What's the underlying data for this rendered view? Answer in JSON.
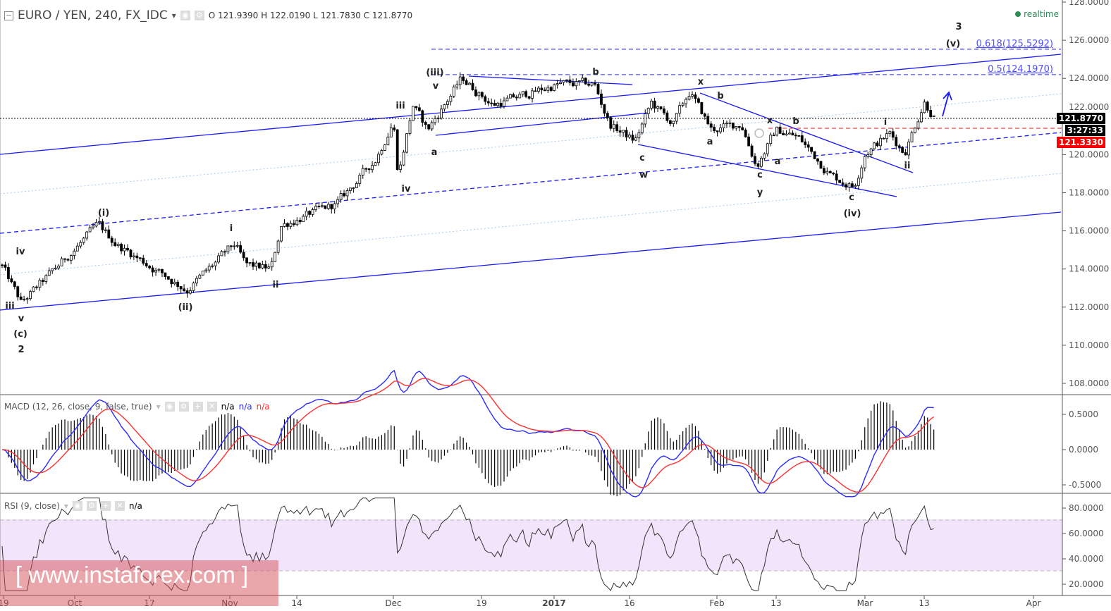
{
  "header": {
    "symbol_title": "EURO / YEN, 240, FX_IDC",
    "open_label": "O",
    "open": "121.9390",
    "high_label": "H",
    "high": "122.0190",
    "low_label": "L",
    "low": "121.7830",
    "close_label": "C",
    "close": "121.8770",
    "realtime": "realtime"
  },
  "macd": {
    "title": "MACD (12, 26, close, 9, false, true)",
    "v1": "n/a",
    "v2": "n/a",
    "v3": "n/a",
    "colors": {
      "macd": "#2b2bff",
      "signal": "#ff3030",
      "histogram": "#000000"
    }
  },
  "rsi": {
    "title": "RSI (9, close)",
    "v1": "n/a",
    "band_color": "#f1e4fb"
  },
  "price_tags": {
    "last": "121.8770",
    "countdown": "3:27:33",
    "level": "121.3330"
  },
  "watermark": "[ www.instaforex.com ]",
  "chart_data": {
    "type": "candlestick",
    "price_axis": {
      "range": [
        107,
        128
      ],
      "ticks": [
        "128.0000",
        "126.0000",
        "124.0000",
        "122.0000",
        "120.0000",
        "118.0000",
        "116.0000",
        "114.0000",
        "112.0000",
        "110.0000",
        "108.0000"
      ]
    },
    "macd_axis": {
      "ticks": [
        "0.5000",
        "0.0000",
        "-0.5000"
      ]
    },
    "rsi_axis": {
      "ticks": [
        "80.0000",
        "60.0000",
        "40.0000",
        "20.0000"
      ],
      "band": [
        30,
        70
      ]
    },
    "x_ticks": [
      "19",
      "Oct",
      "17",
      "Nov",
      "14",
      "Dec",
      "19",
      "2017",
      "16",
      "Feb",
      "13",
      "Mar",
      "13",
      "Apr"
    ],
    "price_path": [
      [
        "2016-09-19",
        114.0
      ],
      [
        "2016-09-22",
        112.2
      ],
      [
        "2016-10-06",
        116.3
      ],
      [
        "2016-10-10",
        115.3
      ],
      [
        "2016-10-24",
        112.9
      ],
      [
        "2016-11-02",
        115.3
      ],
      [
        "2016-11-04",
        114.2
      ],
      [
        "2016-11-09",
        114.0
      ],
      [
        "2016-11-11",
        116.3
      ],
      [
        "2016-11-21",
        117.4
      ],
      [
        "2016-11-28",
        119.8
      ],
      [
        "2016-12-01",
        121.8
      ],
      [
        "2016-12-02",
        118.9
      ],
      [
        "2016-12-05",
        122.6
      ],
      [
        "2016-12-08",
        121.3
      ],
      [
        "2016-12-15",
        124.0
      ],
      [
        "2016-12-21",
        122.6
      ],
      [
        "2017-01-02",
        123.7
      ],
      [
        "2017-01-09",
        123.7
      ],
      [
        "2017-01-12",
        121.6
      ],
      [
        "2017-01-17",
        120.7
      ],
      [
        "2017-01-20",
        122.7
      ],
      [
        "2017-01-24",
        121.6
      ],
      [
        "2017-01-27",
        123.3
      ],
      [
        "2017-01-31",
        121.3
      ],
      [
        "2017-02-06",
        121.6
      ],
      [
        "2017-02-09",
        119.4
      ],
      [
        "2017-02-13",
        121.3
      ],
      [
        "2017-02-17",
        120.9
      ],
      [
        "2017-02-23",
        118.9
      ],
      [
        "2017-02-27",
        118.3
      ],
      [
        "2017-03-01",
        120.1
      ],
      [
        "2017-03-06",
        121.1
      ],
      [
        "2017-03-09",
        120.1
      ],
      [
        "2017-03-13",
        122.8
      ],
      [
        "2017-03-15",
        121.88
      ]
    ],
    "wave_labels": [
      "iv",
      "iii",
      "v",
      "(c)",
      "2",
      "(i)",
      "(ii)",
      "i",
      "ii",
      "iii",
      "iv",
      "(iii)",
      "v",
      "a",
      "b",
      "c",
      "w",
      "x",
      "b",
      "a",
      "x",
      "b",
      "a",
      "c",
      "y",
      "c",
      "(iv)",
      "i",
      "ii",
      "3",
      "(v)"
    ],
    "fib_levels": [
      {
        "label": "0.618(125.5292)",
        "price": 125.5292
      },
      {
        "label": "0.5(124.1970)",
        "price": 124.197
      }
    ],
    "colors": {
      "trendline": "#1a1aff",
      "fib": "#5050ff",
      "level_line": "#ff4040",
      "candle": "#000000"
    }
  }
}
